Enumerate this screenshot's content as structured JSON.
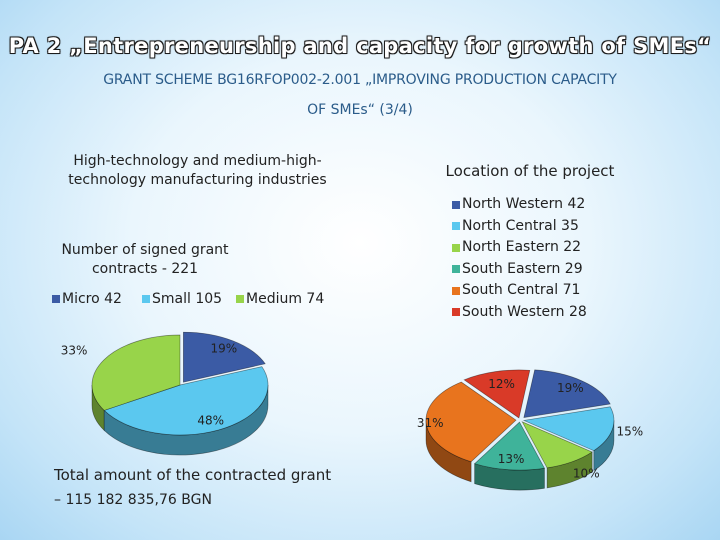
{
  "title": "PA 2 „Entrepreneurship and capacity for growth of SMEs“",
  "subtitle_line1": "GRANT SCHEME BG16RFOP002-2.001 „IMPROVING PRODUCTION CAPACITY",
  "subtitle_line2": "OF SMEs“ (3/4)",
  "left_heading": "High-technology and medium-high-technology manufacturing industries",
  "contracts_text": "Number of signed grant contracts - 221",
  "total_line1": "Total amount of the contracted grant",
  "total_line2": "– 115 182 835,76 BGN",
  "chart_data": [
    {
      "type": "pie",
      "title": "",
      "legend_position": "top",
      "categories": [
        "Micro 42",
        "Small 105",
        "Medium 74"
      ],
      "values": [
        42,
        105,
        74
      ],
      "percent_labels": [
        "19%",
        "48%",
        "33%"
      ],
      "colors": [
        "#3b5ba5",
        "#5bc8ef",
        "#98d44a"
      ]
    },
    {
      "type": "pie",
      "title": "Location of the project",
      "legend_position": "top",
      "categories": [
        "North Western 42",
        "North Central 35",
        "North Eastern 22",
        "South Eastern 29",
        "South Central 71",
        "South Western 28"
      ],
      "values": [
        42,
        35,
        22,
        29,
        71,
        28
      ],
      "percent_labels": [
        "19%",
        "15%",
        "10%",
        "13%",
        "31%",
        "12%"
      ],
      "colors": [
        "#3b5ba5",
        "#5bc8ef",
        "#98d44a",
        "#3fb39a",
        "#e8741e",
        "#d93a28"
      ]
    }
  ]
}
